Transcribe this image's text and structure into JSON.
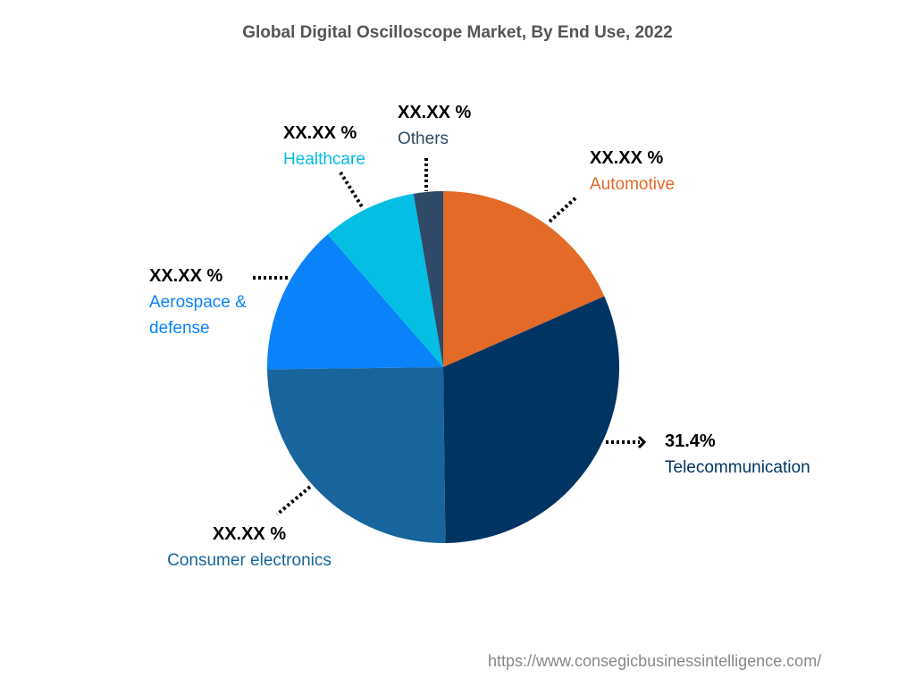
{
  "chart_data": {
    "type": "pie",
    "title": "Global Digital Oscilloscope Market, By End Use, 2022",
    "start_angle": "12 o'clock, clockwise",
    "slices": [
      {
        "name": "Automotive",
        "value": 18.4,
        "label": "XX.XX %",
        "color": "#E36A27"
      },
      {
        "name": "Telecommunication",
        "value": 31.4,
        "label": "31.4%",
        "color": "#003463"
      },
      {
        "name": "Consumer electronics",
        "value": 25.0,
        "label": "XX.XX %",
        "color": "#18649C"
      },
      {
        "name": "Aerospace & defense",
        "value": 13.8,
        "label": "XX.XX %",
        "color": "#0A82FA"
      },
      {
        "name": "Healthcare",
        "value": 8.7,
        "label": "XX.XX %",
        "color": "#04BEE3"
      },
      {
        "name": "Others",
        "value": 2.7,
        "label": "XX.XX %",
        "color": "#2E4A66"
      }
    ]
  },
  "source": "https://www.consegicbusinessintelligence.com/"
}
